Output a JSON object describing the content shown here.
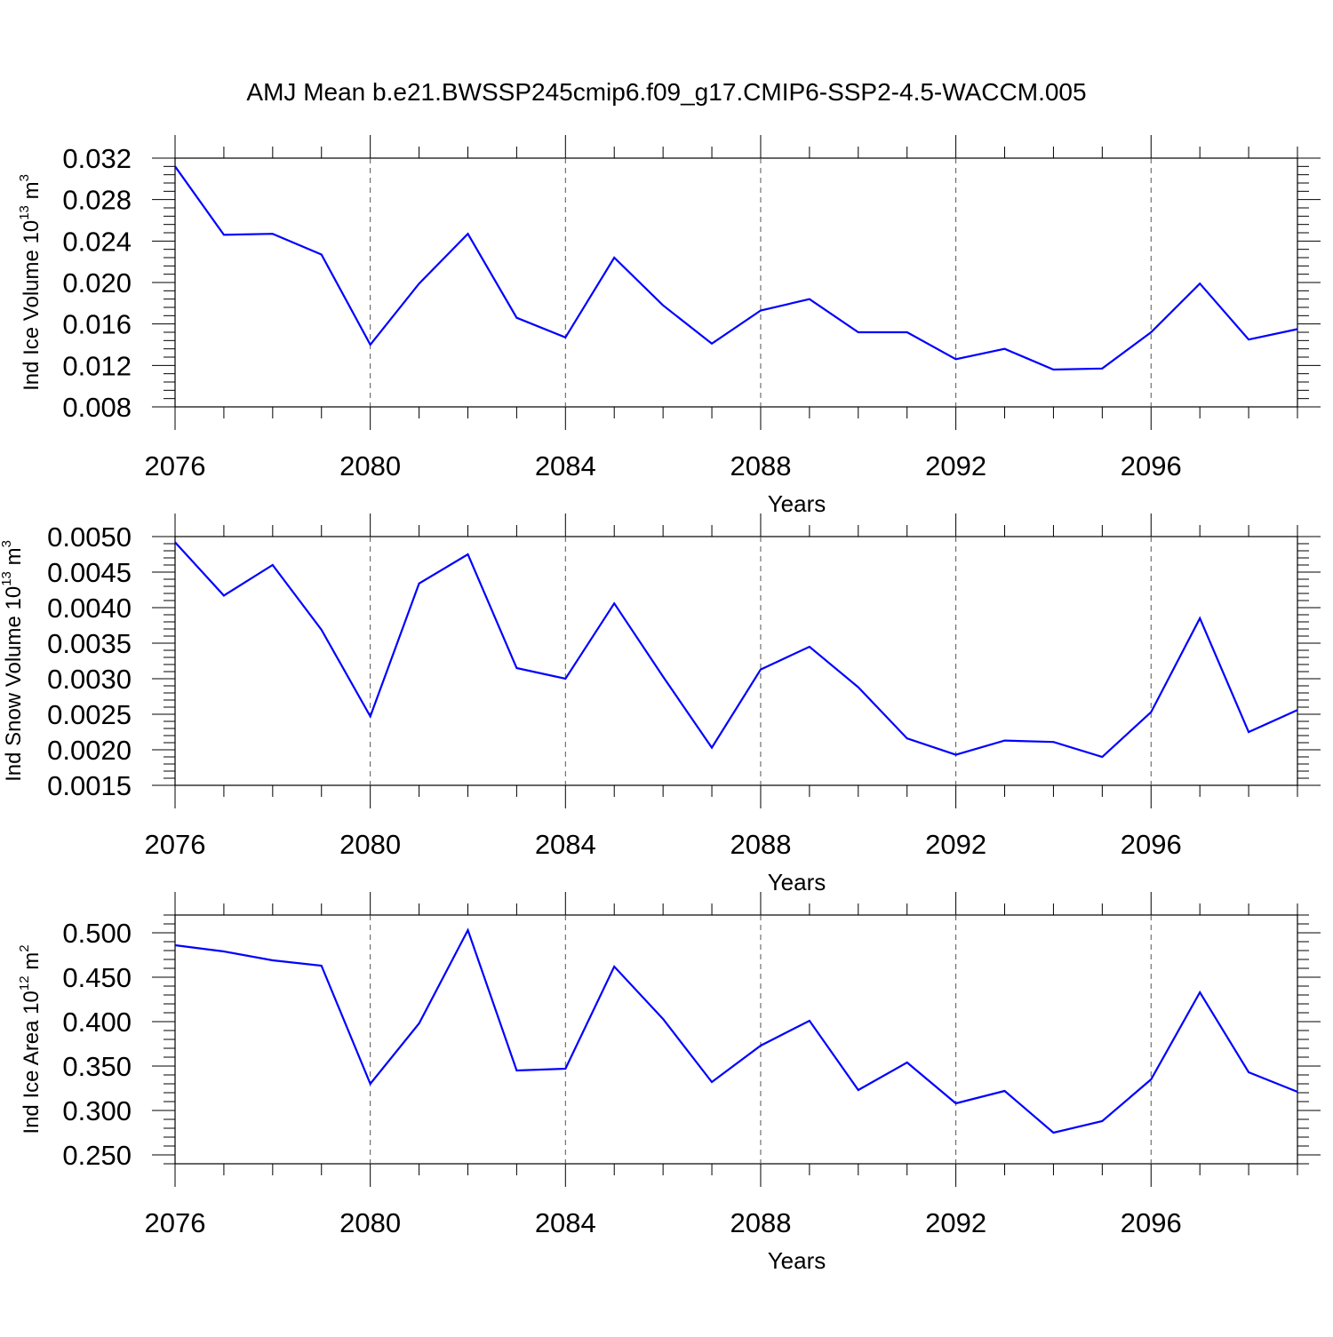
{
  "title": "AMJ Mean b.e21.BWSSP245cmip6.f09_g17.CMIP6-SSP2-4.5-WACCM.005",
  "chart_data": [
    {
      "type": "line",
      "xlabel": "Years",
      "ylabel": {
        "prefix": "Ind Ice Volume 10",
        "exponent": "13",
        "unit": " m",
        "unit_exponent": "3"
      },
      "x": [
        2076,
        2077,
        2078,
        2079,
        2080,
        2081,
        2082,
        2083,
        2084,
        2085,
        2086,
        2087,
        2088,
        2089,
        2090,
        2091,
        2092,
        2093,
        2094,
        2095,
        2096,
        2097,
        2098,
        2099
      ],
      "series": [
        {
          "color": "#0000ff",
          "values": [
            0.0312,
            0.0246,
            0.0247,
            0.0227,
            0.014,
            0.0199,
            0.0247,
            0.0166,
            0.0147,
            0.0224,
            0.0178,
            0.0141,
            0.0173,
            0.0184,
            0.0152,
            0.0152,
            0.0126,
            0.0136,
            0.0116,
            0.0117,
            0.0152,
            0.0199,
            0.0145,
            0.0155
          ]
        }
      ],
      "xlim": [
        2076,
        2099
      ],
      "ylim": [
        0.008,
        0.032
      ],
      "xticks": [
        "2076",
        "2080",
        "2084",
        "2088",
        "2092",
        "2096"
      ],
      "yticks": [
        "0.008",
        "0.012",
        "0.016",
        "0.020",
        "0.024",
        "0.028",
        "0.032"
      ],
      "grid": "vertical dashed at major x ticks"
    },
    {
      "type": "line",
      "xlabel": "Years",
      "ylabel": {
        "prefix": "Ind Snow Volume 10",
        "exponent": "13",
        "unit": " m",
        "unit_exponent": "3"
      },
      "x": [
        2076,
        2077,
        2078,
        2079,
        2080,
        2081,
        2082,
        2083,
        2084,
        2085,
        2086,
        2087,
        2088,
        2089,
        2090,
        2091,
        2092,
        2093,
        2094,
        2095,
        2096,
        2097,
        2098,
        2099
      ],
      "series": [
        {
          "color": "#0000ff",
          "values": [
            0.00492,
            0.00417,
            0.0046,
            0.00369,
            0.00247,
            0.00434,
            0.00475,
            0.00315,
            0.003,
            0.00406,
            0.00303,
            0.00203,
            0.00313,
            0.00345,
            0.00288,
            0.00216,
            0.00193,
            0.00213,
            0.00211,
            0.0019,
            0.00253,
            0.00385,
            0.00225,
            0.00256
          ]
        }
      ],
      "xlim": [
        2076,
        2099
      ],
      "ylim": [
        0.0015,
        0.005
      ],
      "xticks": [
        "2076",
        "2080",
        "2084",
        "2088",
        "2092",
        "2096"
      ],
      "yticks": [
        "0.0015",
        "0.0020",
        "0.0025",
        "0.0030",
        "0.0035",
        "0.0040",
        "0.0045",
        "0.0050"
      ],
      "grid": "vertical dashed at major x ticks"
    },
    {
      "type": "line",
      "xlabel": "Years",
      "ylabel": {
        "prefix": "Ind Ice Area 10",
        "exponent": "12",
        "unit": " m",
        "unit_exponent": "2"
      },
      "x": [
        2076,
        2077,
        2078,
        2079,
        2080,
        2081,
        2082,
        2083,
        2084,
        2085,
        2086,
        2087,
        2088,
        2089,
        2090,
        2091,
        2092,
        2093,
        2094,
        2095,
        2096,
        2097,
        2098,
        2099
      ],
      "series": [
        {
          "color": "#0000ff",
          "values": [
            0.486,
            0.479,
            0.469,
            0.463,
            0.33,
            0.398,
            0.503,
            0.345,
            0.347,
            0.462,
            0.403,
            0.332,
            0.373,
            0.401,
            0.323,
            0.354,
            0.308,
            0.322,
            0.275,
            0.288,
            0.335,
            0.433,
            0.343,
            0.321
          ]
        }
      ],
      "xlim": [
        2076,
        2099
      ],
      "ylim": [
        0.24,
        0.52
      ],
      "xticks": [
        "2076",
        "2080",
        "2084",
        "2088",
        "2092",
        "2096"
      ],
      "yticks": [
        "0.250",
        "0.300",
        "0.350",
        "0.400",
        "0.450",
        "0.500"
      ],
      "grid": "vertical dashed at major x ticks"
    }
  ]
}
